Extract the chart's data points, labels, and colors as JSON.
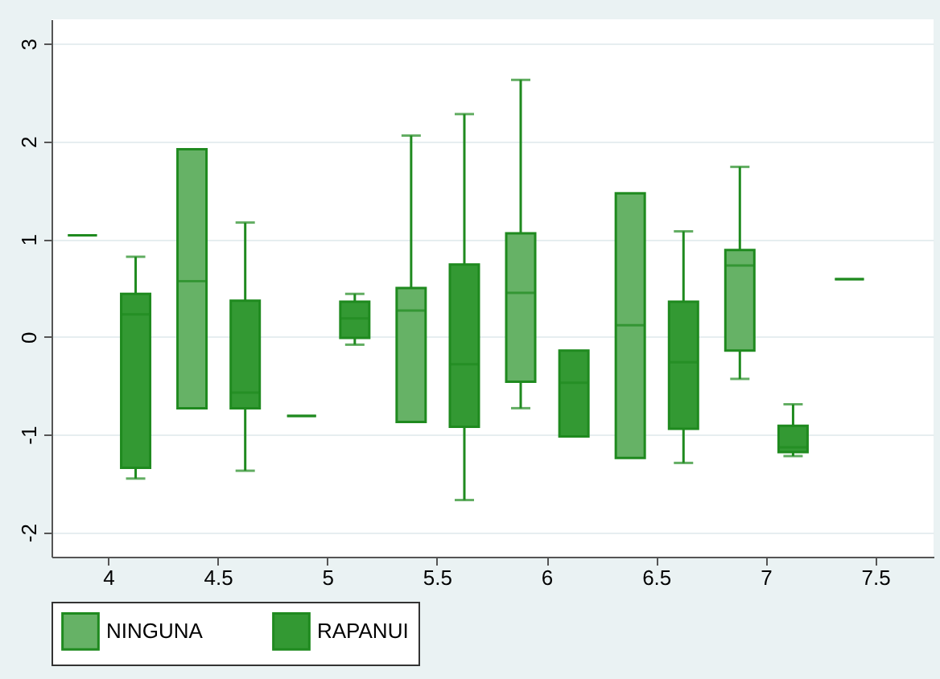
{
  "chart_data": {
    "type": "box",
    "categories": [
      "4",
      "4.5",
      "5",
      "5.5",
      "6",
      "6.5",
      "7",
      "7.5"
    ],
    "series": [
      {
        "name": "NINGUNA",
        "color": "#66b266",
        "boxes": [
          {
            "low": 1.04,
            "q1": 1.04,
            "median": 1.04,
            "q3": 1.04,
            "high": 1.04
          },
          {
            "low": -0.73,
            "q1": -0.73,
            "median": 0.57,
            "q3": 1.92,
            "high": 1.92
          },
          {
            "low": -0.81,
            "q1": -0.81,
            "median": -0.81,
            "q3": -0.81,
            "high": -0.81
          },
          {
            "low": -0.87,
            "q1": -0.87,
            "median": 0.27,
            "q3": 0.5,
            "high": 2.06
          },
          {
            "low": -0.73,
            "q1": -0.46,
            "median": 0.45,
            "q3": 1.06,
            "high": 2.63
          },
          {
            "low": -1.24,
            "q1": -1.24,
            "median": 0.12,
            "q3": 1.47,
            "high": 1.47
          },
          {
            "low": -0.43,
            "q1": -0.14,
            "median": 0.73,
            "q3": 0.89,
            "high": 1.74
          },
          {
            "low": 0.59,
            "q1": 0.59,
            "median": 0.59,
            "q3": 0.59,
            "high": 0.59
          }
        ]
      },
      {
        "name": "RAPANUI",
        "color": "#339933",
        "boxes": [
          {
            "low": -1.45,
            "q1": -1.34,
            "median": 0.23,
            "q3": 0.44,
            "high": 0.82
          },
          {
            "low": -1.37,
            "q1": -0.73,
            "median": -0.57,
            "q3": 0.37,
            "high": 1.17
          },
          {
            "low": -0.08,
            "q1": -0.01,
            "median": 0.19,
            "q3": 0.36,
            "high": 0.44
          },
          {
            "low": -1.67,
            "q1": -0.92,
            "median": -0.28,
            "q3": 0.74,
            "high": 2.28
          },
          {
            "low": -1.02,
            "q1": -1.02,
            "median": -0.47,
            "q3": -0.14,
            "high": -0.14
          },
          {
            "low": -1.29,
            "q1": -0.94,
            "median": -0.26,
            "q3": 0.36,
            "high": 1.08
          },
          {
            "low": -1.22,
            "q1": -1.18,
            "median": -1.13,
            "q3": -0.91,
            "high": -0.69
          },
          null
        ]
      }
    ],
    "ylim": [
      -2.25,
      3.25
    ],
    "yticks": [
      -2,
      -1,
      0,
      1,
      2,
      3
    ],
    "grid": "y",
    "legend": "bottom"
  }
}
